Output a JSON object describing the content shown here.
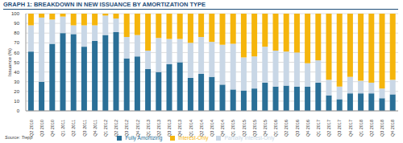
{
  "chart_data": {
    "type": "bar",
    "title": "GRAPH 1: BREAKDOWN IN NEW ISSUANCE BY AMORTIZATION TYPE",
    "y_label": "Issuance (%)",
    "annotations": [
      "Source: Trepp"
    ],
    "categories": [
      "Q2 2010",
      "Q3 2010",
      "Q4 2010",
      "Q1 2011",
      "Q2 2011",
      "Q3 2011",
      "Q4 2011",
      "Q1 2012",
      "Q2 2012",
      "Q3 2012",
      "Q4 2012",
      "Q1 2013",
      "Q2 2013",
      "Q3 2013",
      "Q4 2013",
      "Q1 2014",
      "Q2 2014",
      "Q3 2014",
      "Q4 2014",
      "Q1 2015",
      "Q2 2015",
      "Q3 2015",
      "Q4 2015",
      "Q1 2016",
      "Q2 2016",
      "Q3 2016",
      "Q4 2016",
      "Q1 2017",
      "Q2 2017",
      "Q3 2017",
      "Q4 2017",
      "Q1 2018",
      "Q2 2018",
      "Q3 2018",
      "Q4 2018"
    ],
    "series": [
      {
        "name": "Fully Amortizing",
        "color": "#2a6f97",
        "values": [
          61,
          30,
          69,
          80,
          79,
          66,
          72,
          78,
          81,
          54,
          56,
          43,
          40,
          48,
          50,
          34,
          38,
          35,
          27,
          22,
          21,
          23,
          29,
          25,
          26,
          25,
          25,
          29,
          16,
          12,
          18,
          18,
          18,
          13,
          17
        ]
      },
      {
        "name": "Partially Interest-Only",
        "color": "#c9d7e6",
        "values": [
          27,
          66,
          25,
          17,
          9,
          22,
          16,
          20,
          14,
          22,
          22,
          19,
          35,
          26,
          24,
          36,
          38,
          36,
          41,
          47,
          34,
          33,
          37,
          37,
          35,
          35,
          24,
          23,
          16,
          13,
          17,
          13,
          11,
          10,
          15
        ]
      },
      {
        "name": "Interest-Only",
        "color": "#f5b50c",
        "values": [
          12,
          4,
          6,
          3,
          12,
          12,
          12,
          2,
          5,
          24,
          22,
          38,
          25,
          26,
          26,
          30,
          24,
          29,
          32,
          31,
          45,
          44,
          34,
          38,
          39,
          40,
          51,
          48,
          68,
          75,
          65,
          69,
          71,
          77,
          68
        ]
      }
    ],
    "stacked": true,
    "ylim": [
      0,
      100
    ],
    "yticks": [
      0,
      10,
      20,
      30,
      40,
      50,
      60,
      70,
      80,
      90,
      100
    ],
    "grid": true,
    "legend": "bottom"
  }
}
